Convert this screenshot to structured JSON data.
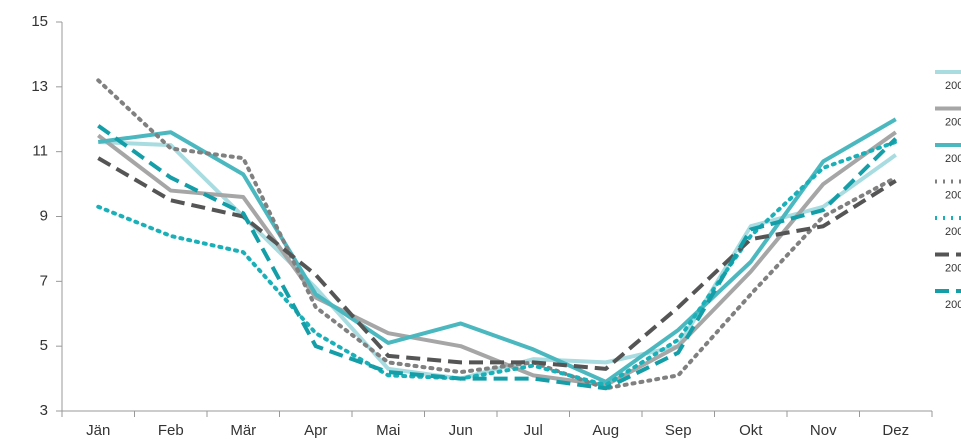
{
  "chart_data": {
    "type": "line",
    "categories": [
      "Jän",
      "Feb",
      "Mär",
      "Apr",
      "Mai",
      "Jun",
      "Jul",
      "Aug",
      "Sep",
      "Okt",
      "Nov",
      "Dez"
    ],
    "series": [
      {
        "name": "200",
        "color": "#a8dce0",
        "dash": "solid",
        "values": [
          11.3,
          11.2,
          9.0,
          6.8,
          4.3,
          4.0,
          4.6,
          4.5,
          5.0,
          8.7,
          9.3,
          10.9
        ]
      },
      {
        "name": "200",
        "color": "#a6a6a6",
        "dash": "solid",
        "values": [
          11.5,
          9.8,
          9.6,
          6.5,
          5.4,
          5.0,
          4.1,
          3.8,
          5.0,
          7.3,
          10.0,
          11.6
        ]
      },
      {
        "name": "200",
        "color": "#4bb8c0",
        "dash": "solid",
        "values": [
          11.3,
          11.6,
          10.3,
          6.6,
          5.1,
          5.7,
          4.9,
          3.9,
          5.5,
          7.6,
          10.7,
          12.0
        ]
      },
      {
        "name": "200",
        "color": "#808080",
        "dash": "dotted",
        "values": [
          13.2,
          11.1,
          10.8,
          6.2,
          4.5,
          4.2,
          4.5,
          3.7,
          4.1,
          6.6,
          9.0,
          10.2
        ]
      },
      {
        "name": "200",
        "color": "#1bb0b8",
        "dash": "dotted",
        "values": [
          9.3,
          8.4,
          7.9,
          5.4,
          4.1,
          4.0,
          4.4,
          3.8,
          5.2,
          8.4,
          10.5,
          11.3
        ]
      },
      {
        "name": "200",
        "color": "#555555",
        "dash": "dashed",
        "values": [
          10.8,
          9.5,
          9.0,
          7.2,
          4.7,
          4.5,
          4.5,
          4.3,
          6.2,
          8.3,
          8.7,
          10.1
        ]
      },
      {
        "name": "200",
        "color": "#139ea8",
        "dash": "dashed",
        "values": [
          11.8,
          10.2,
          9.1,
          5.0,
          4.2,
          4.0,
          4.0,
          3.7,
          4.8,
          8.6,
          9.2,
          11.4
        ]
      }
    ],
    "ylim": [
      3,
      15
    ],
    "yticks": [
      3,
      5,
      7,
      9,
      11,
      13,
      15
    ],
    "legend": "right"
  }
}
